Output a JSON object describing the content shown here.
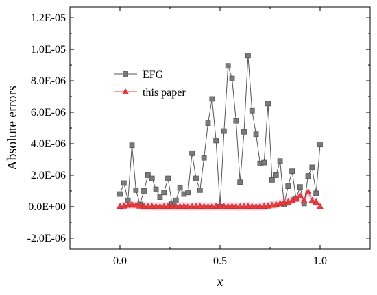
{
  "chart_data": {
    "type": "line",
    "xlabel": "x",
    "ylabel": "Absolute errors",
    "xlim": [
      -0.25,
      1.25
    ],
    "ylim": [
      -2.7e-06,
      1.27e-05
    ],
    "x_ticks": [
      0.0,
      0.5,
      1.0
    ],
    "x_tick_labels": [
      "0.0",
      "0.5",
      "1.0"
    ],
    "y_ticks": [
      -2e-06,
      0,
      2e-06,
      4e-06,
      6e-06,
      8e-06,
      1e-05,
      1.2e-05
    ],
    "y_tick_labels": [
      "-2.0E-06",
      "0.0E+00",
      "2.0E-06",
      "4.0E-06",
      "6.0E-06",
      "8.0E-06",
      "1.0E-05",
      "1.2E-05"
    ],
    "grid": false,
    "legend_position": "upper-left",
    "series": [
      {
        "name": "EFG",
        "color": "#555555",
        "marker": "square",
        "x": [
          0.0,
          0.02,
          0.04,
          0.06,
          0.08,
          0.1,
          0.12,
          0.14,
          0.16,
          0.18,
          0.2,
          0.22,
          0.24,
          0.26,
          0.28,
          0.3,
          0.32,
          0.34,
          0.36,
          0.38,
          0.4,
          0.42,
          0.44,
          0.46,
          0.48,
          0.5,
          0.52,
          0.54,
          0.56,
          0.58,
          0.6,
          0.62,
          0.64,
          0.66,
          0.68,
          0.7,
          0.72,
          0.74,
          0.76,
          0.78,
          0.8,
          0.82,
          0.84,
          0.86,
          0.88,
          0.9,
          0.92,
          0.94,
          0.96,
          0.98,
          1.0
        ],
        "y": [
          8e-07,
          1.5e-06,
          4e-07,
          3.9e-06,
          1.05e-06,
          1.5e-07,
          1e-06,
          2e-06,
          1.8e-06,
          1.1e-06,
          6e-07,
          9e-07,
          1.8e-06,
          2e-07,
          4e-07,
          1.2e-06,
          8e-07,
          9e-07,
          3.4e-06,
          1.8e-06,
          1.05e-06,
          3.1e-06,
          5.3e-06,
          6.85e-06,
          4.2e-06,
          0.0,
          4.8e-06,
          8.95e-06,
          8.15e-06,
          5.45e-06,
          1.55e-06,
          4.75e-06,
          9.6e-06,
          6.1e-06,
          4.6e-06,
          2.75e-06,
          2.8e-06,
          6.55e-06,
          1.7e-06,
          2e-06,
          2.9e-06,
          1.5e-07,
          1.3e-06,
          2.25e-06,
          5e-07,
          1.25e-06,
          2e-07,
          1.95e-06,
          2.5e-06,
          8.5e-07,
          3.95e-06
        ]
      },
      {
        "name": "this paper",
        "color": "#f03a3a",
        "marker": "triangle",
        "x": [
          0.0,
          0.02,
          0.04,
          0.06,
          0.08,
          0.1,
          0.12,
          0.14,
          0.16,
          0.18,
          0.2,
          0.22,
          0.24,
          0.26,
          0.28,
          0.3,
          0.32,
          0.34,
          0.36,
          0.38,
          0.4,
          0.42,
          0.44,
          0.46,
          0.48,
          0.5,
          0.52,
          0.54,
          0.56,
          0.58,
          0.6,
          0.62,
          0.64,
          0.66,
          0.68,
          0.7,
          0.72,
          0.74,
          0.76,
          0.78,
          0.8,
          0.82,
          0.84,
          0.86,
          0.88,
          0.9,
          0.92,
          0.94,
          0.96,
          0.98,
          1.0
        ],
        "y": [
          2e-08,
          5e-08,
          1e-07,
          1.5e-07,
          1e-07,
          5e-08,
          3e-08,
          2e-08,
          3e-08,
          2e-08,
          1e-08,
          2e-08,
          3e-08,
          2e-08,
          1e-08,
          2e-08,
          3e-08,
          2e-08,
          1e-08,
          2e-08,
          3e-08,
          2e-08,
          1e-08,
          2e-08,
          3e-08,
          2e-08,
          1e-08,
          2e-08,
          3e-08,
          2e-08,
          1e-08,
          2e-08,
          3e-08,
          2e-08,
          1e-08,
          2e-08,
          3e-08,
          5e-08,
          1e-07,
          1.5e-07,
          2e-07,
          2.5e-07,
          3e-07,
          4e-07,
          5e-07,
          7e-07,
          4e-07,
          9.5e-07,
          4e-07,
          3e-07,
          1e-08
        ]
      }
    ]
  }
}
